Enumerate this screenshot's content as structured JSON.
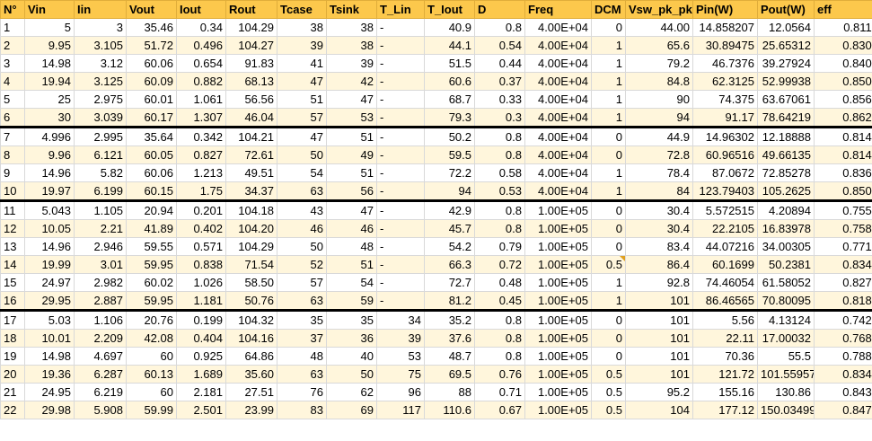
{
  "headers": [
    "N°",
    "Vin",
    "Iin",
    "Vout",
    "Iout",
    "Rout",
    "Tcase",
    "Tsink",
    "T_Lin",
    "T_Iout",
    "D",
    "Freq",
    "DCM",
    "Vsw_pk_pk",
    "Pin(W)",
    "Pout(W)",
    "eff"
  ],
  "rows": [
    [
      "1",
      "5",
      "3",
      "35.46",
      "0.34",
      "104.29",
      "38",
      "38",
      "-",
      "40.9",
      "0.8",
      "4.00E+04",
      "0",
      "44.00",
      "14.858207",
      "12.0564",
      "0.8114"
    ],
    [
      "2",
      "9.95",
      "3.105",
      "51.72",
      "0.496",
      "104.27",
      "39",
      "38",
      "-",
      "44.1",
      "0.54",
      "4.00E+04",
      "1",
      "65.6",
      "30.89475",
      "25.65312",
      "0.8303"
    ],
    [
      "3",
      "14.98",
      "3.12",
      "60.06",
      "0.654",
      "91.83",
      "41",
      "39",
      "-",
      "51.5",
      "0.44",
      "4.00E+04",
      "1",
      "79.2",
      "46.7376",
      "39.27924",
      "0.8404"
    ],
    [
      "4",
      "19.94",
      "3.125",
      "60.09",
      "0.882",
      "68.13",
      "47",
      "42",
      "-",
      "60.6",
      "0.37",
      "4.00E+04",
      "1",
      "84.8",
      "62.3125",
      "52.99938",
      "0.8505"
    ],
    [
      "5",
      "25",
      "2.975",
      "60.01",
      "1.061",
      "56.56",
      "51",
      "47",
      "-",
      "68.7",
      "0.33",
      "4.00E+04",
      "1",
      "90",
      "74.375",
      "63.67061",
      "0.8561"
    ],
    [
      "6",
      "30",
      "3.039",
      "60.17",
      "1.307",
      "46.04",
      "57",
      "53",
      "-",
      "79.3",
      "0.3",
      "4.00E+04",
      "1",
      "94",
      "91.17",
      "78.64219",
      "0.8626"
    ],
    [
      "7",
      "4.996",
      "2.995",
      "35.64",
      "0.342",
      "104.21",
      "47",
      "51",
      "-",
      "50.2",
      "0.8",
      "4.00E+04",
      "0",
      "44.9",
      "14.96302",
      "12.18888",
      "0.8146"
    ],
    [
      "8",
      "9.96",
      "6.121",
      "60.05",
      "0.827",
      "72.61",
      "50",
      "49",
      "-",
      "59.5",
      "0.8",
      "4.00E+04",
      "0",
      "72.8",
      "60.96516",
      "49.66135",
      "0.8146"
    ],
    [
      "9",
      "14.96",
      "5.82",
      "60.06",
      "1.213",
      "49.51",
      "54",
      "51",
      "-",
      "72.2",
      "0.58",
      "4.00E+04",
      "1",
      "78.4",
      "87.0672",
      "72.85278",
      "0.8367"
    ],
    [
      "10",
      "19.97",
      "6.199",
      "60.15",
      "1.75",
      "34.37",
      "63",
      "56",
      "-",
      "94",
      "0.53",
      "4.00E+04",
      "1",
      "84",
      "123.79403",
      "105.2625",
      "0.8503"
    ],
    [
      "11",
      "5.043",
      "1.105",
      "20.94",
      "0.201",
      "104.18",
      "43",
      "47",
      "-",
      "42.9",
      "0.8",
      "1.00E+05",
      "0",
      "30.4",
      "5.572515",
      "4.20894",
      "0.7553"
    ],
    [
      "12",
      "10.05",
      "2.21",
      "41.89",
      "0.402",
      "104.20",
      "46",
      "46",
      "-",
      "45.7",
      "0.8",
      "1.00E+05",
      "0",
      "30.4",
      "22.2105",
      "16.83978",
      "0.7582"
    ],
    [
      "13",
      "14.96",
      "2.946",
      "59.55",
      "0.571",
      "104.29",
      "50",
      "48",
      "-",
      "54.2",
      "0.79",
      "1.00E+05",
      "0",
      "83.4",
      "44.07216",
      "34.00305",
      "0.7715"
    ],
    [
      "14",
      "19.99",
      "3.01",
      "59.95",
      "0.838",
      "71.54",
      "52",
      "51",
      "-",
      "66.3",
      "0.72",
      "1.00E+05",
      "0.5",
      "86.4",
      "60.1699",
      "50.2381",
      "0.8349"
    ],
    [
      "15",
      "24.97",
      "2.982",
      "60.02",
      "1.026",
      "58.50",
      "57",
      "54",
      "-",
      "72.7",
      "0.48",
      "1.00E+05",
      "1",
      "92.8",
      "74.46054",
      "61.58052",
      "0.8270"
    ],
    [
      "16",
      "29.95",
      "2.887",
      "59.95",
      "1.181",
      "50.76",
      "63",
      "59",
      "-",
      "81.2",
      "0.45",
      "1.00E+05",
      "1",
      "101",
      "86.46565",
      "70.80095",
      "0.8188"
    ],
    [
      "17",
      "5.03",
      "1.106",
      "20.76",
      "0.199",
      "104.32",
      "35",
      "35",
      "34",
      "35.2",
      "0.8",
      "1.00E+05",
      "0",
      "101",
      "5.56",
      "4.13124",
      "0.7426"
    ],
    [
      "18",
      "10.01",
      "2.209",
      "42.08",
      "0.404",
      "104.16",
      "37",
      "36",
      "39",
      "37.6",
      "0.8",
      "1.00E+05",
      "0",
      "101",
      "22.11",
      "17.00032",
      "0.7688"
    ],
    [
      "19",
      "14.98",
      "4.697",
      "60",
      "0.925",
      "64.86",
      "48",
      "40",
      "53",
      "48.7",
      "0.8",
      "1.00E+05",
      "0",
      "101",
      "70.36",
      "55.5",
      "0.7888"
    ],
    [
      "20",
      "19.36",
      "6.287",
      "60.13",
      "1.689",
      "35.60",
      "63",
      "50",
      "75",
      "69.5",
      "0.76",
      "1.00E+05",
      "0.5",
      "101",
      "121.72",
      "101.55957",
      "0.8344"
    ],
    [
      "21",
      "24.95",
      "6.219",
      "60",
      "2.181",
      "27.51",
      "76",
      "62",
      "96",
      "88",
      "0.71",
      "1.00E+05",
      "0.5",
      "95.2",
      "155.16",
      "130.86",
      "0.8434"
    ],
    [
      "22",
      "29.98",
      "5.908",
      "59.99",
      "2.501",
      "23.99",
      "83",
      "69",
      "117",
      "110.6",
      "0.67",
      "1.00E+05",
      "0.5",
      "104",
      "177.12",
      "150.03499",
      "0.8471"
    ]
  ],
  "group_end_rows": [
    6,
    10,
    16
  ],
  "left_aligned_columns": [
    8
  ],
  "note_cell": {
    "row": 14,
    "col": 12
  },
  "colors": {
    "header_bg": "#fcc84c",
    "row_alt_bg": "#fff6dc",
    "separator": "#000000"
  }
}
